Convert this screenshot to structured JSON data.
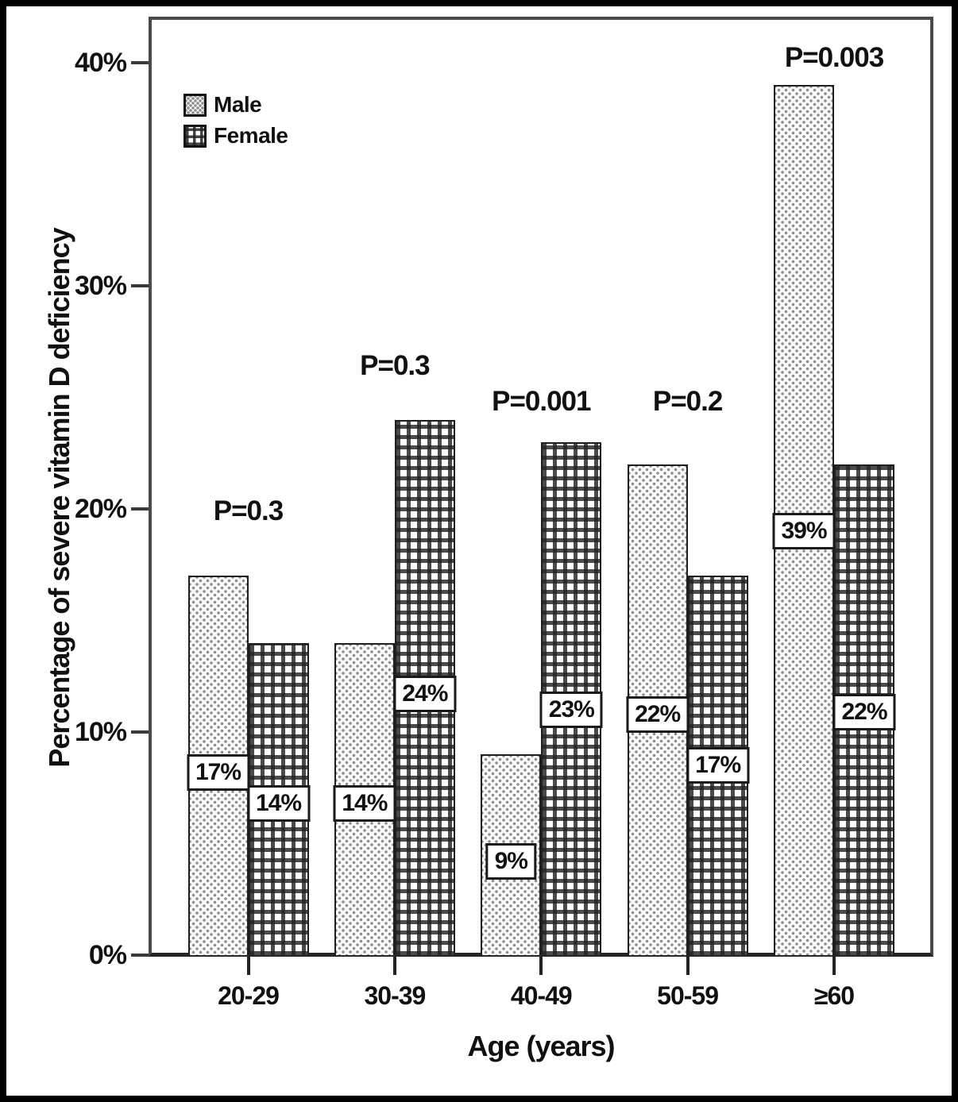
{
  "chart_data": {
    "type": "bar",
    "title": "",
    "xlabel": "Age (years)",
    "ylabel": "Percentage of severe vitamin D deficiency",
    "categories": [
      "20-29",
      "30-39",
      "40-49",
      "50-59",
      "≥60"
    ],
    "series": [
      {
        "name": "Male",
        "pattern": "dots",
        "values": [
          17,
          14,
          9,
          22,
          39
        ],
        "value_labels": [
          "17%",
          "14%",
          "9%",
          "22%",
          "39%"
        ],
        "label_center_pct": [
          8.2,
          6.8,
          4.2,
          10.8,
          19.0
        ]
      },
      {
        "name": "Female",
        "pattern": "check",
        "values": [
          14,
          24,
          23,
          17,
          22
        ],
        "value_labels": [
          "14%",
          "24%",
          "23%",
          "17%",
          "22%"
        ],
        "label_center_pct": [
          6.8,
          11.7,
          11.0,
          8.5,
          10.9
        ]
      }
    ],
    "annotations": [
      {
        "text": "P=0.3",
        "group": 0,
        "y_pct": 19.9
      },
      {
        "text": "P=0.3",
        "group": 1,
        "y_pct": 26.4
      },
      {
        "text": "P=0.001",
        "group": 2,
        "y_pct": 24.8
      },
      {
        "text": "P=0.2",
        "group": 3,
        "y_pct": 24.8
      },
      {
        "text": "P=0.003",
        "group": 4,
        "y_pct": 40.2
      }
    ],
    "y_ticks": [
      {
        "value": 0,
        "label": "0%"
      },
      {
        "value": 10,
        "label": "10%"
      },
      {
        "value": 20,
        "label": "20%"
      },
      {
        "value": 30,
        "label": "30%"
      },
      {
        "value": 40,
        "label": "40%"
      }
    ],
    "ylim": [
      0,
      42
    ],
    "grid": false,
    "legend": {
      "position": "top-left",
      "entries": [
        "Male",
        "Female"
      ]
    }
  }
}
